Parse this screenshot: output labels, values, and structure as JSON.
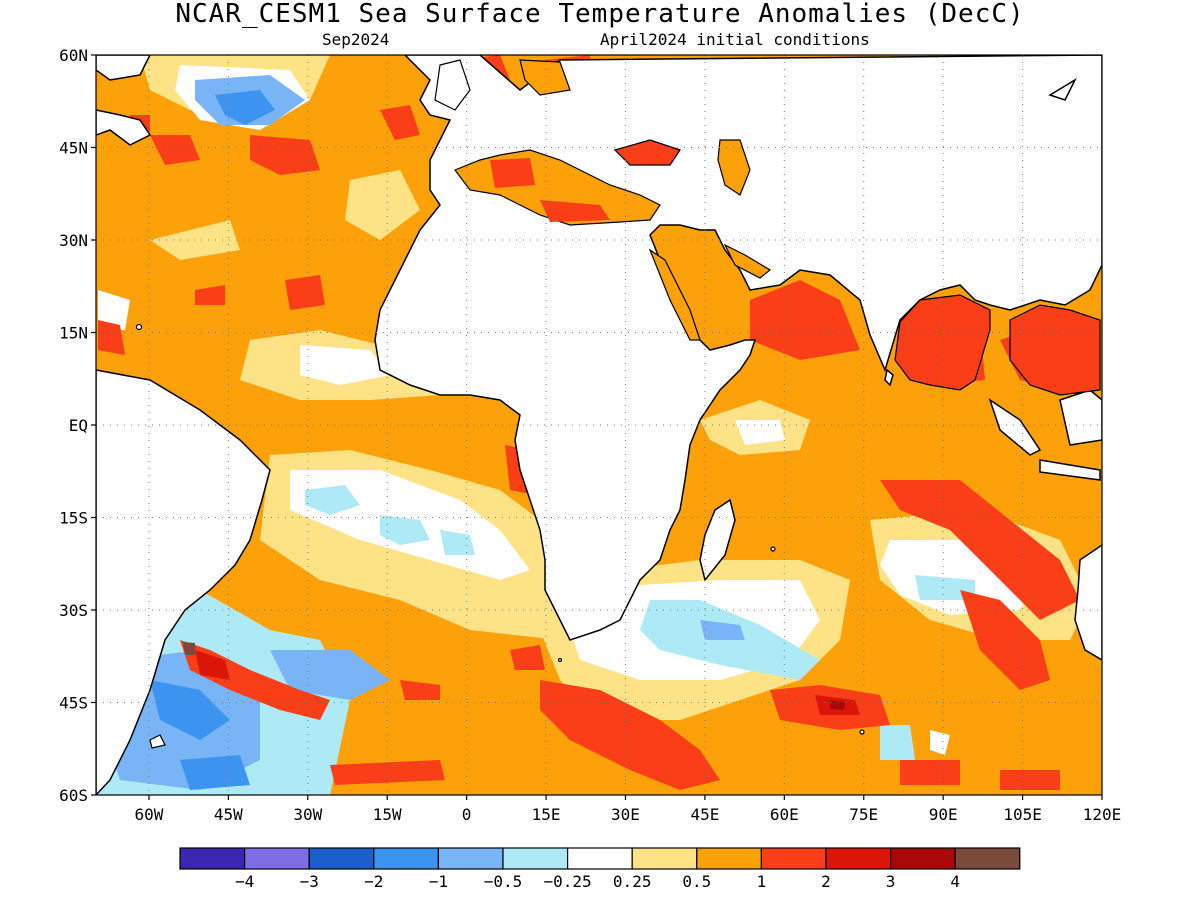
{
  "header": {
    "title": "NCAR_CESM1 Sea Surface Temperature Anomalies (DecC)",
    "subtitle_left": "Sep2024",
    "subtitle_right": "April2024 initial conditions"
  },
  "axes": {
    "lat_labels": [
      "60N",
      "45N",
      "30N",
      "15N",
      "EQ",
      "15S",
      "30S",
      "45S",
      "60S"
    ],
    "lon_labels": [
      "60W",
      "45W",
      "30W",
      "15W",
      "0",
      "15E",
      "30E",
      "45E",
      "60E",
      "75E",
      "90E",
      "105E",
      "120E"
    ],
    "lon_range": [
      -70,
      120
    ],
    "lat_range": [
      -60,
      60
    ]
  },
  "colorbar": {
    "colors": [
      "#3a26b0",
      "#7d6ee6",
      "#1a5fcc",
      "#3c93f0",
      "#78b4f6",
      "#aeeaf6",
      "#ffffff",
      "#fde385",
      "#fda10a",
      "#fa3f18",
      "#dc1509",
      "#a80808",
      "#7a4a3c"
    ],
    "labels": [
      "−4",
      "−3",
      "−2",
      "−1",
      "−0.5",
      "−0.25",
      "0.25",
      "0.5",
      "1",
      "2",
      "3",
      "4"
    ]
  },
  "map_colors": {
    "ocean_base": "#fda10a",
    "land": "#ffffff",
    "coast": "#000000"
  }
}
